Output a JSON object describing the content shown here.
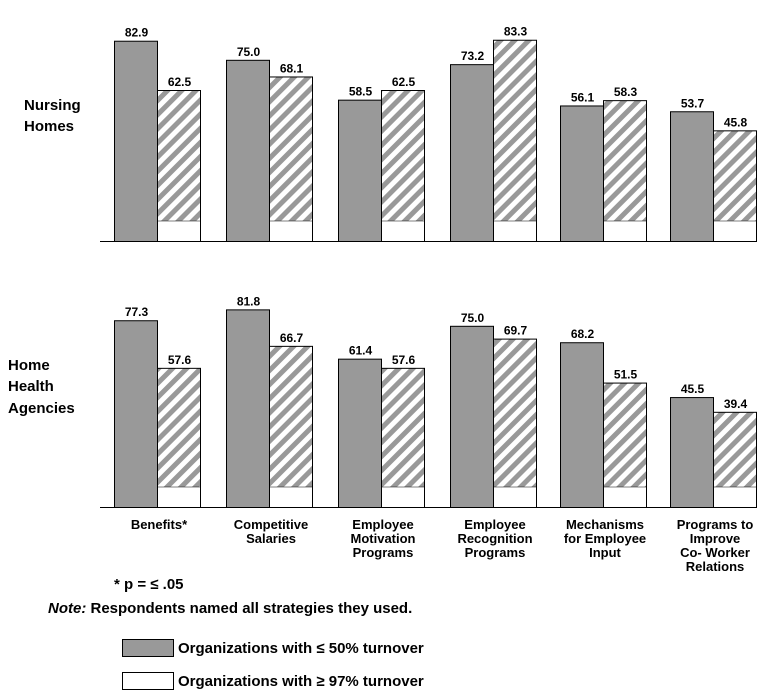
{
  "chart_data": {
    "type": "bar",
    "categories": [
      [
        "Benefits*"
      ],
      [
        "Competitive",
        "Salaries"
      ],
      [
        "Employee",
        "Motivation",
        "Programs"
      ],
      [
        "Employee",
        "Recognition",
        "Programs"
      ],
      [
        "Mechanisms",
        "for Employee",
        "Input"
      ],
      [
        "Programs to",
        "Improve",
        "Co- Worker",
        "Relations"
      ]
    ],
    "panels": [
      {
        "label": [
          "Nursing",
          "Homes"
        ],
        "series": [
          {
            "name": "Organizations with ≤ 50% turnover",
            "values": [
              82.9,
              75.0,
              58.5,
              73.2,
              56.1,
              53.7
            ]
          },
          {
            "name": "Organizations with ≥ 97% turnover",
            "values": [
              62.5,
              68.1,
              62.5,
              83.3,
              58.3,
              45.8
            ]
          }
        ]
      },
      {
        "label": [
          "Home",
          "Health",
          "Agencies"
        ],
        "series": [
          {
            "name": "Organizations with ≤ 50% turnover",
            "values": [
              77.3,
              81.8,
              61.4,
              75.0,
              68.2,
              45.5
            ]
          },
          {
            "name": "Organizations with ≥ 97% turnover",
            "values": [
              57.6,
              66.7,
              57.6,
              69.7,
              51.5,
              39.4
            ]
          }
        ]
      }
    ],
    "value_labels": [
      [
        "82.9",
        "62.5",
        "75.0",
        "68.1",
        "58.5",
        "62.5",
        "73.2",
        "83.3",
        "56.1",
        "58.3",
        "53.7",
        "45.8"
      ],
      [
        "77.3",
        "57.6",
        "81.8",
        "66.7",
        "61.4",
        "57.6",
        "75.0",
        "69.7",
        "68.2",
        "51.5",
        "45.5",
        "39.4"
      ]
    ],
    "ylim": [
      0,
      100
    ],
    "grid": false,
    "colors": {
      "low_turnover": "#999999",
      "high_turnover": "#ffffff",
      "hatch": "#999999"
    },
    "legend_placement": "bottom-left"
  },
  "footnote": {
    "symbol": "*",
    "text": "p = ≤ .05"
  },
  "note": {
    "prefix": "Note:",
    "text": " Respondents named all strategies they used."
  },
  "legend": [
    {
      "label": "Organizations with ≤ 50% turnover",
      "swatch": "gray"
    },
    {
      "label": "Organizations with ≥ 97% turnover",
      "swatch": "white"
    }
  ]
}
